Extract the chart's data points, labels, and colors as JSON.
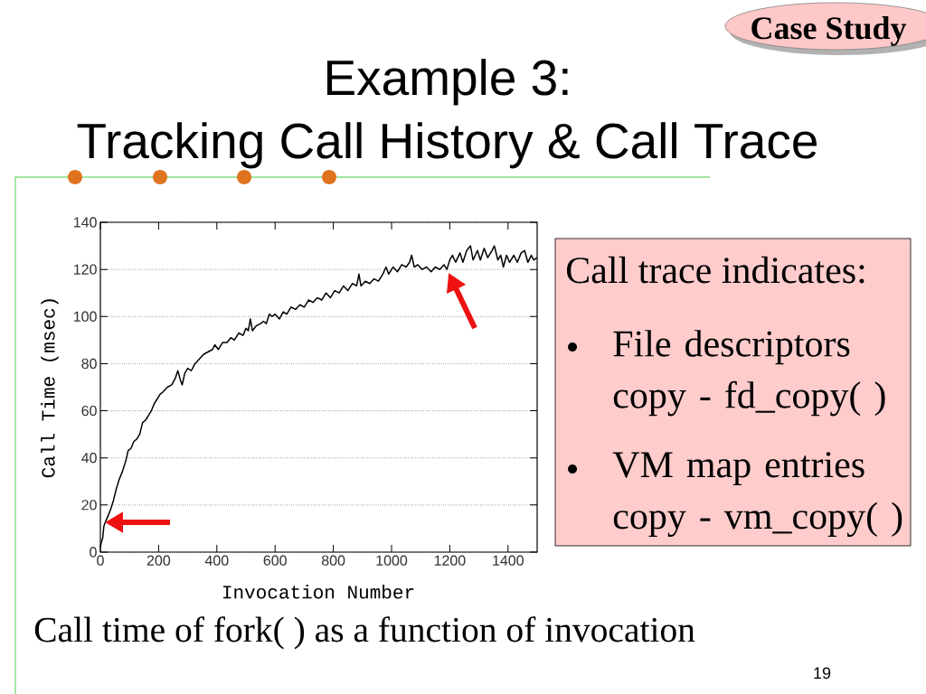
{
  "chart_data": {
    "type": "line",
    "title": "Example 3:",
    "subtitle": "Tracking Call History & Call Trace",
    "xlabel": "Invocation Number",
    "ylabel": "Call Time (msec)",
    "annotations": [
      "Case Study",
      "Call trace indicates:",
      "File descriptors copy - fd_copy( )",
      "VM map entries copy - vm_copy( )",
      "Call time of fork( ) as a function of invocation",
      "19"
    ],
    "x": [
      0,
      3,
      8,
      12,
      18,
      25,
      35,
      45,
      55,
      65,
      75,
      88,
      95,
      105,
      115,
      125,
      135,
      145,
      155,
      165,
      175,
      185,
      195,
      205,
      215,
      230,
      245,
      258,
      266,
      275,
      281,
      290,
      300,
      312,
      325,
      340,
      355,
      370,
      385,
      393,
      405,
      420,
      435,
      448,
      460,
      475,
      490,
      500,
      508,
      515,
      522,
      535,
      550,
      560,
      570,
      580,
      590,
      600,
      615,
      628,
      640,
      655,
      670,
      685,
      700,
      715,
      730,
      745,
      760,
      775,
      790,
      805,
      820,
      835,
      850,
      865,
      880,
      888,
      895,
      910,
      925,
      940,
      955,
      970,
      981,
      990,
      1005,
      1020,
      1035,
      1050,
      1062,
      1069,
      1078,
      1090,
      1105,
      1120,
      1136,
      1150,
      1165,
      1180,
      1190,
      1200,
      1209,
      1220,
      1235,
      1245,
      1258,
      1271,
      1280,
      1295,
      1305,
      1318,
      1330,
      1345,
      1353,
      1365,
      1375,
      1384,
      1395,
      1405,
      1420,
      1432,
      1445,
      1457,
      1468,
      1480,
      1488,
      1500
    ],
    "values": [
      2,
      4,
      6,
      11,
      13,
      15,
      18,
      22,
      27,
      31,
      34,
      39,
      43,
      44,
      47,
      48,
      50,
      55,
      56,
      58,
      60,
      63,
      65,
      67,
      68,
      70,
      71,
      74,
      77,
      73,
      71,
      76,
      78,
      77,
      80,
      82,
      84,
      85,
      86,
      88,
      86,
      89,
      89,
      91,
      90,
      93,
      92,
      95,
      94,
      99,
      94,
      96,
      97,
      98,
      97,
      101,
      100,
      101,
      99,
      102,
      101,
      104,
      103,
      105,
      104,
      107,
      106,
      108,
      107,
      110,
      108,
      111,
      110,
      113,
      111,
      114,
      113,
      118,
      113,
      115,
      114,
      116,
      115,
      118,
      121,
      118,
      121,
      119,
      122,
      121,
      123,
      126,
      121,
      122,
      120,
      121,
      119,
      121,
      120,
      122,
      120,
      124,
      126,
      123,
      127,
      123,
      128,
      130,
      124,
      128,
      124,
      129,
      125,
      128,
      130,
      124,
      126,
      121,
      126,
      123,
      126,
      123,
      127,
      128,
      123,
      126,
      124,
      125
    ],
    "color": "#000000",
    "xlim": [
      0,
      1500
    ],
    "ylim": [
      0,
      140
    ],
    "xticks": [
      0,
      200,
      400,
      600,
      800,
      1000,
      1200,
      1400
    ],
    "yticks": [
      0,
      20,
      40,
      60,
      80,
      100,
      120,
      140
    ],
    "grid": "y"
  }
}
